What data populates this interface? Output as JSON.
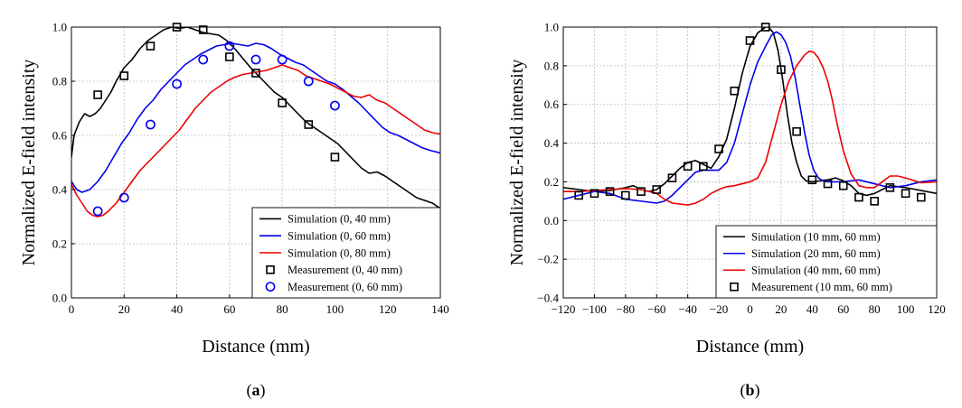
{
  "chart_data": [
    {
      "type": "line",
      "panel_label": "(a)",
      "caption": {
        "open": "(",
        "letter": "a",
        "close": ")"
      },
      "xlabel": "Distance (mm)",
      "ylabel": "Normalized E-field intensity",
      "xlim": [
        0,
        140
      ],
      "ylim": [
        0,
        1.0
      ],
      "xticks": [
        0,
        20,
        40,
        60,
        80,
        100,
        120,
        140
      ],
      "yticks": [
        0.0,
        0.2,
        0.4,
        0.6,
        0.8,
        1.0
      ],
      "xtick_labels": [
        "0",
        "20",
        "40",
        "60",
        "80",
        "100",
        "120",
        "140"
      ],
      "ytick_labels": [
        "0.0",
        "0.2",
        "0.4",
        "0.6",
        "0.8",
        "1.0"
      ],
      "grid": true,
      "legend_position": "bottom-right",
      "series": [
        {
          "name": "Simulation (0, 40 mm)",
          "kind": "line",
          "color": "#000000",
          "x": [
            0,
            1,
            3,
            5,
            7,
            9,
            11,
            13,
            15,
            17,
            20,
            23,
            26,
            29,
            32,
            35,
            38,
            41,
            44,
            47,
            50,
            53,
            56,
            59,
            62,
            65,
            68,
            71,
            74,
            77,
            80,
            83,
            86,
            89,
            92,
            95,
            98,
            101,
            104,
            107,
            110,
            113,
            116,
            119,
            122,
            125,
            128,
            131,
            134,
            137,
            140
          ],
          "y": [
            0.52,
            0.6,
            0.65,
            0.68,
            0.67,
            0.68,
            0.7,
            0.73,
            0.76,
            0.8,
            0.85,
            0.88,
            0.92,
            0.95,
            0.97,
            0.99,
            1.0,
            0.995,
            1.0,
            0.99,
            0.98,
            0.975,
            0.97,
            0.95,
            0.92,
            0.885,
            0.85,
            0.82,
            0.79,
            0.76,
            0.74,
            0.71,
            0.68,
            0.65,
            0.63,
            0.61,
            0.59,
            0.57,
            0.54,
            0.51,
            0.48,
            0.46,
            0.465,
            0.45,
            0.43,
            0.41,
            0.39,
            0.37,
            0.36,
            0.35,
            0.33
          ]
        },
        {
          "name": "Simulation (0, 60 mm)",
          "kind": "line",
          "color": "#0000ee",
          "x": [
            0,
            2,
            4,
            7,
            10,
            13,
            16,
            19,
            22,
            25,
            28,
            31,
            34,
            37,
            40,
            43,
            46,
            49,
            52,
            55,
            58,
            61,
            64,
            67,
            70,
            73,
            76,
            79,
            82,
            85,
            88,
            91,
            94,
            97,
            100,
            103,
            106,
            109,
            112,
            115,
            118,
            121,
            124,
            127,
            130,
            133,
            136,
            140
          ],
          "y": [
            0.43,
            0.4,
            0.39,
            0.4,
            0.43,
            0.47,
            0.52,
            0.57,
            0.61,
            0.66,
            0.7,
            0.73,
            0.77,
            0.8,
            0.83,
            0.86,
            0.88,
            0.9,
            0.915,
            0.93,
            0.935,
            0.94,
            0.935,
            0.93,
            0.94,
            0.935,
            0.92,
            0.9,
            0.885,
            0.87,
            0.86,
            0.84,
            0.82,
            0.8,
            0.79,
            0.77,
            0.745,
            0.72,
            0.69,
            0.66,
            0.63,
            0.61,
            0.6,
            0.585,
            0.57,
            0.555,
            0.545,
            0.535
          ]
        },
        {
          "name": "Simulation (0, 80 mm)",
          "kind": "line",
          "color": "#ee0000",
          "x": [
            0,
            2,
            4,
            6,
            8,
            10,
            12,
            14,
            17,
            20,
            23,
            26,
            29,
            32,
            35,
            38,
            41,
            44,
            47,
            50,
            53,
            56,
            59,
            62,
            65,
            68,
            71,
            74,
            77,
            80,
            83,
            86,
            89,
            92,
            95,
            98,
            101,
            104,
            107,
            110,
            113,
            116,
            119,
            122,
            125,
            128,
            131,
            134,
            137,
            140
          ],
          "y": [
            0.42,
            0.38,
            0.35,
            0.32,
            0.305,
            0.3,
            0.305,
            0.32,
            0.35,
            0.39,
            0.43,
            0.47,
            0.5,
            0.53,
            0.56,
            0.59,
            0.62,
            0.66,
            0.7,
            0.73,
            0.76,
            0.78,
            0.8,
            0.815,
            0.825,
            0.83,
            0.835,
            0.84,
            0.85,
            0.86,
            0.85,
            0.84,
            0.82,
            0.81,
            0.8,
            0.79,
            0.775,
            0.76,
            0.745,
            0.74,
            0.75,
            0.73,
            0.72,
            0.7,
            0.68,
            0.66,
            0.64,
            0.62,
            0.61,
            0.605
          ]
        },
        {
          "name": "Measurement (0, 40 mm)",
          "kind": "marker",
          "marker": "square",
          "color": "#000000",
          "x": [
            10,
            20,
            30,
            40,
            50,
            60,
            70,
            80,
            90,
            100
          ],
          "y": [
            0.75,
            0.82,
            0.93,
            1.0,
            0.99,
            0.89,
            0.83,
            0.72,
            0.64,
            0.52
          ]
        },
        {
          "name": "Measurement (0, 60 mm)",
          "kind": "marker",
          "marker": "circle",
          "color": "#0000ee",
          "x": [
            10,
            20,
            30,
            40,
            50,
            60,
            70,
            80,
            90,
            100
          ],
          "y": [
            0.32,
            0.37,
            0.64,
            0.79,
            0.88,
            0.93,
            0.88,
            0.88,
            0.8,
            0.71
          ]
        }
      ]
    },
    {
      "type": "line",
      "panel_label": "(b)",
      "caption": {
        "open": "(",
        "letter": "b",
        "close": ")"
      },
      "xlabel": "Distance (mm)",
      "ylabel": "Normalized E-field intensity",
      "xlim": [
        -120,
        120
      ],
      "ylim": [
        -0.4,
        1.0
      ],
      "xticks": [
        -120,
        -100,
        -80,
        -60,
        -40,
        -20,
        0,
        20,
        40,
        60,
        80,
        100,
        120
      ],
      "yticks": [
        -0.4,
        -0.2,
        0.0,
        0.2,
        0.4,
        0.6,
        0.8,
        1.0
      ],
      "xtick_labels": [
        "−120",
        "−100",
        "−80",
        "−60",
        "−40",
        "−20",
        "0",
        "20",
        "40",
        "60",
        "80",
        "100",
        "120"
      ],
      "ytick_labels": [
        "−0.4",
        "−0.2",
        "0.0",
        "0.2",
        "0.4",
        "0.6",
        "0.8",
        "1.0"
      ],
      "grid": true,
      "legend_position": "bottom-right",
      "series": [
        {
          "name": "Simulation (10 mm, 60 mm)",
          "kind": "line",
          "color": "#000000",
          "x": [
            -120,
            -110,
            -100,
            -90,
            -80,
            -75,
            -70,
            -65,
            -60,
            -55,
            -50,
            -45,
            -40,
            -35,
            -30,
            -25,
            -20,
            -15,
            -10,
            -5,
            0,
            5,
            10,
            12,
            15,
            18,
            21,
            24,
            27,
            30,
            33,
            36,
            40,
            45,
            50,
            55,
            60,
            65,
            70,
            75,
            80,
            85,
            90,
            95,
            100,
            110,
            120
          ],
          "y": [
            0.17,
            0.16,
            0.15,
            0.155,
            0.17,
            0.18,
            0.16,
            0.15,
            0.16,
            0.19,
            0.23,
            0.27,
            0.3,
            0.31,
            0.29,
            0.27,
            0.33,
            0.42,
            0.58,
            0.76,
            0.9,
            0.97,
            1.0,
            1.0,
            0.97,
            0.88,
            0.73,
            0.55,
            0.4,
            0.3,
            0.23,
            0.205,
            0.2,
            0.205,
            0.21,
            0.22,
            0.205,
            0.18,
            0.14,
            0.13,
            0.14,
            0.16,
            0.18,
            0.175,
            0.17,
            0.155,
            0.14
          ]
        },
        {
          "name": "Simulation (20 mm, 60 mm)",
          "kind": "line",
          "color": "#0000ee",
          "x": [
            -120,
            -110,
            -100,
            -90,
            -80,
            -70,
            -60,
            -55,
            -50,
            -45,
            -40,
            -35,
            -30,
            -25,
            -20,
            -15,
            -10,
            -5,
            0,
            5,
            10,
            14,
            17,
            20,
            23,
            26,
            29,
            32,
            35,
            38,
            41,
            44,
            47,
            50,
            55,
            60,
            70,
            80,
            90,
            100,
            110,
            120
          ],
          "y": [
            0.11,
            0.13,
            0.15,
            0.14,
            0.11,
            0.1,
            0.09,
            0.1,
            0.13,
            0.17,
            0.21,
            0.25,
            0.26,
            0.26,
            0.26,
            0.3,
            0.4,
            0.55,
            0.7,
            0.82,
            0.9,
            0.96,
            0.975,
            0.96,
            0.92,
            0.85,
            0.74,
            0.6,
            0.46,
            0.34,
            0.26,
            0.22,
            0.205,
            0.2,
            0.2,
            0.2,
            0.21,
            0.19,
            0.17,
            0.18,
            0.2,
            0.21
          ]
        },
        {
          "name": "Simulation (40 mm, 60 mm)",
          "kind": "line",
          "color": "#ee0000",
          "x": [
            -120,
            -110,
            -100,
            -90,
            -80,
            -70,
            -60,
            -55,
            -50,
            -45,
            -40,
            -35,
            -30,
            -25,
            -20,
            -15,
            -10,
            -5,
            0,
            5,
            10,
            15,
            20,
            25,
            30,
            35,
            38,
            41,
            44,
            47,
            50,
            53,
            56,
            60,
            65,
            70,
            75,
            80,
            85,
            90,
            95,
            100,
            110,
            120
          ],
          "y": [
            0.15,
            0.15,
            0.155,
            0.16,
            0.165,
            0.16,
            0.14,
            0.11,
            0.09,
            0.085,
            0.08,
            0.09,
            0.11,
            0.14,
            0.16,
            0.175,
            0.18,
            0.19,
            0.2,
            0.22,
            0.3,
            0.45,
            0.6,
            0.72,
            0.8,
            0.855,
            0.875,
            0.87,
            0.84,
            0.79,
            0.72,
            0.62,
            0.5,
            0.36,
            0.24,
            0.18,
            0.17,
            0.17,
            0.2,
            0.23,
            0.23,
            0.22,
            0.195,
            0.2
          ]
        },
        {
          "name": "Measurement (10 mm, 60 mm)",
          "kind": "marker",
          "marker": "square",
          "color": "#000000",
          "x": [
            -110,
            -100,
            -90,
            -80,
            -70,
            -60,
            -50,
            -40,
            -30,
            -20,
            -10,
            0,
            10,
            20,
            30,
            40,
            50,
            60,
            70,
            80,
            90,
            100,
            110
          ],
          "y": [
            0.13,
            0.14,
            0.15,
            0.13,
            0.15,
            0.16,
            0.22,
            0.28,
            0.28,
            0.37,
            0.67,
            0.93,
            1.0,
            0.78,
            0.46,
            0.21,
            0.19,
            0.18,
            0.12,
            0.1,
            0.17,
            0.14,
            0.12
          ]
        }
      ]
    }
  ]
}
